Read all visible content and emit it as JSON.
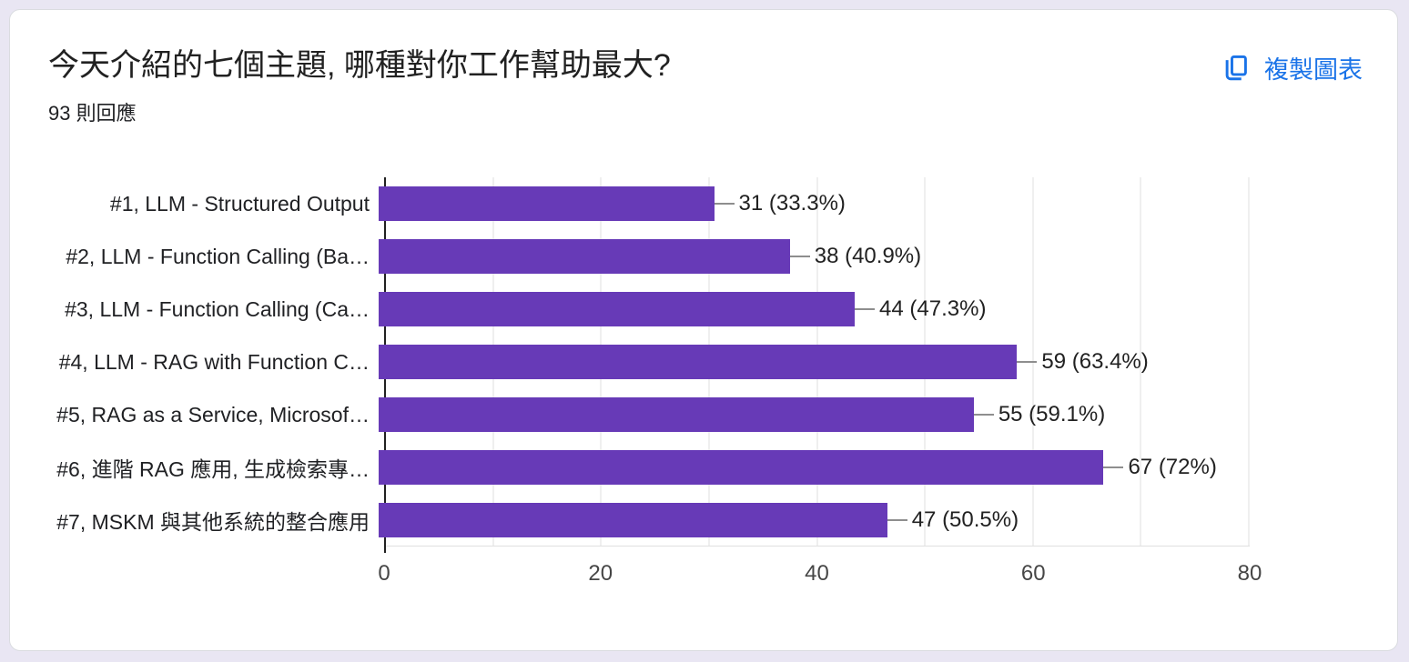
{
  "page": {
    "background_color": "#e9e6f3",
    "card_background": "#ffffff",
    "card_border_color": "#dadce0"
  },
  "header": {
    "title": "今天介紹的七個主題, 哪種對你工作幫助最大?",
    "response_count": "93 則回應",
    "copy_button_label": "複製圖表",
    "accent_color": "#1a73e8"
  },
  "chart_data": {
    "type": "bar",
    "orientation": "horizontal",
    "title": "今天介紹的七個主題, 哪種對你工作幫助最大?",
    "subtitle": "93 則回應",
    "categories": [
      "#1, LLM - Structured Output",
      "#2, LLM - Function Calling (Ba…",
      "#3, LLM - Function Calling (Ca…",
      "#4, LLM - RAG with Function C…",
      "#5, RAG as a Service, Microsof…",
      "#6, 進階 RAG 應用, 生成檢索專…",
      "#7, MSKM 與其他系統的整合應用"
    ],
    "values": [
      31,
      38,
      44,
      59,
      55,
      67,
      47
    ],
    "value_labels": [
      "31 (33.3%)",
      "38 (40.9%)",
      "44 (47.3%)",
      "59 (63.4%)",
      "55 (59.1%)",
      "67 (72%)",
      "47 (50.5%)"
    ],
    "xlim": [
      0,
      80
    ],
    "xticks": [
      "0",
      "20",
      "40",
      "60",
      "80"
    ],
    "grid": true,
    "gridline_step": 10,
    "bar_color": "#673ab7",
    "legend": "none"
  }
}
